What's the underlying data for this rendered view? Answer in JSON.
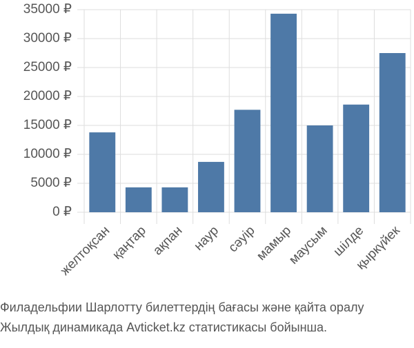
{
  "chart_data": {
    "type": "bar",
    "categories": [
      "желтоқсан",
      "қаңтар",
      "ақпан",
      "наур",
      "сәуір",
      "мамыр",
      "маусым",
      "шілде",
      "қыркүйек"
    ],
    "values": [
      13800,
      4300,
      4300,
      8700,
      17700,
      34300,
      15000,
      18600,
      27500
    ],
    "color": "#4e79a7",
    "ylim": [
      0,
      35000
    ],
    "yticks": [
      {
        "value": 0,
        "label": "0 ₽"
      },
      {
        "value": 5000,
        "label": "5000 ₽"
      },
      {
        "value": 10000,
        "label": "10000 ₽"
      },
      {
        "value": 15000,
        "label": "15000 ₽"
      },
      {
        "value": 20000,
        "label": "20000 ₽"
      },
      {
        "value": 25000,
        "label": "25000 ₽"
      },
      {
        "value": 30000,
        "label": "30000 ₽"
      },
      {
        "value": 35000,
        "label": "35000 ₽"
      }
    ],
    "grid": true,
    "caption": [
      "Филадельфии Шарлотту билеттердің бағасы және қайта оралу",
      "Жылдық динамикада Avticket.kz статистикасы бойынша."
    ]
  }
}
